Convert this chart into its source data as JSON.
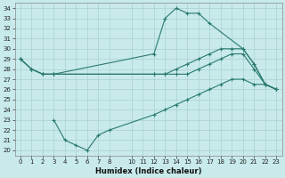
{
  "title": "",
  "xlabel": "Humidex (Indice chaleur)",
  "background_color": "#c8eaea",
  "grid_color": "#b0d4d4",
  "line_color": "#2a7a70",
  "xlim": [
    -0.5,
    23.5
  ],
  "ylim": [
    19.5,
    34.5
  ],
  "xticks": [
    0,
    1,
    2,
    3,
    4,
    5,
    6,
    7,
    8,
    10,
    11,
    12,
    13,
    14,
    15,
    16,
    17,
    18,
    19,
    20,
    21,
    22,
    23
  ],
  "yticks": [
    20,
    21,
    22,
    23,
    24,
    25,
    26,
    27,
    28,
    29,
    30,
    31,
    32,
    33,
    34
  ],
  "series": [
    {
      "x": [
        0,
        1,
        2,
        3,
        12,
        13,
        14,
        15,
        16,
        17,
        20,
        21,
        22,
        23
      ],
      "y": [
        29,
        28,
        27.5,
        27.5,
        29.5,
        33,
        34,
        33.5,
        33.5,
        32.5,
        30,
        28.5,
        26.5,
        26
      ]
    },
    {
      "x": [
        0,
        1,
        2,
        3,
        12,
        13,
        14,
        15,
        16,
        17,
        18,
        19,
        20,
        21,
        22,
        23
      ],
      "y": [
        29,
        28,
        27.5,
        27.5,
        27.5,
        27.5,
        28,
        28.5,
        29,
        29.5,
        30,
        30,
        30,
        28.5,
        26.5,
        26
      ]
    },
    {
      "x": [
        0,
        1,
        2,
        3,
        12,
        13,
        14,
        15,
        16,
        17,
        18,
        19,
        20,
        21,
        22,
        23
      ],
      "y": [
        29,
        28,
        27.5,
        27.5,
        27.5,
        27.5,
        27.5,
        27.5,
        28,
        28.5,
        29,
        29.5,
        29.5,
        28,
        26.5,
        26
      ]
    },
    {
      "x": [
        3,
        4,
        5,
        6,
        7,
        8,
        12,
        13,
        14,
        15,
        16,
        17,
        18,
        19,
        20,
        21,
        22,
        23
      ],
      "y": [
        23,
        21,
        20.5,
        20,
        21.5,
        22,
        23.5,
        24,
        24.5,
        25,
        25.5,
        26,
        26.5,
        27,
        27,
        26.5,
        26.5,
        26
      ]
    }
  ]
}
